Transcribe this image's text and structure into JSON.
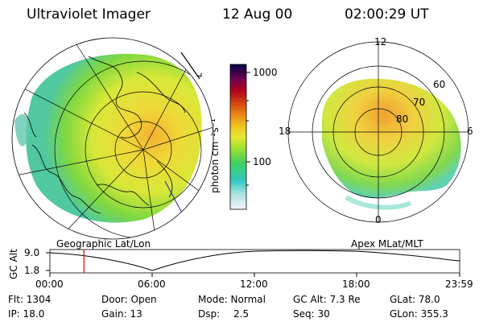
{
  "header": {
    "instrument": "Ultraviolet Imager",
    "date": "12 Aug 00",
    "time": "02:00:29 UT"
  },
  "left_panel": {
    "caption": "Geographic Lat/Lon"
  },
  "right_panel": {
    "caption": "Apex MLat/MLT",
    "mlt_labels": {
      "top": "12",
      "left": "18",
      "right": "6",
      "bottom": "0"
    },
    "lat_labels": [
      "60",
      "70",
      "80"
    ]
  },
  "colorbar": {
    "label": "photon cm⁻²s⁻¹",
    "ticks": [
      "1000",
      "100"
    ],
    "colors": [
      "#f0f0f0",
      "#b0e0e0",
      "#30c8c0",
      "#40d060",
      "#a0e030",
      "#e8e830",
      "#f0c020",
      "#e88018",
      "#d04010",
      "#b00020",
      "#800040",
      "#400060",
      "#000040"
    ]
  },
  "orbit": {
    "ylabel": "GC Alt",
    "ytick_top": "9.0",
    "ytick_bottom": "1.8",
    "time_ticks": [
      "00:00",
      "06:00",
      "12:00",
      "18:00",
      "23:59"
    ],
    "current_time_fraction": 0.083
  },
  "info": {
    "flt": "Flt: 1304",
    "ip": "IP: 18.0",
    "door": "Door: Open",
    "gain": "Gain: 13",
    "mode": "Mode: Normal",
    "dsp_label": "Dsp:",
    "dsp_value": "2.5",
    "gc_alt": "GC Alt: 7.3 Re",
    "seq": "Seq: 30",
    "glat": "GLat: 78.0",
    "glon": "GLon: 355.3"
  }
}
